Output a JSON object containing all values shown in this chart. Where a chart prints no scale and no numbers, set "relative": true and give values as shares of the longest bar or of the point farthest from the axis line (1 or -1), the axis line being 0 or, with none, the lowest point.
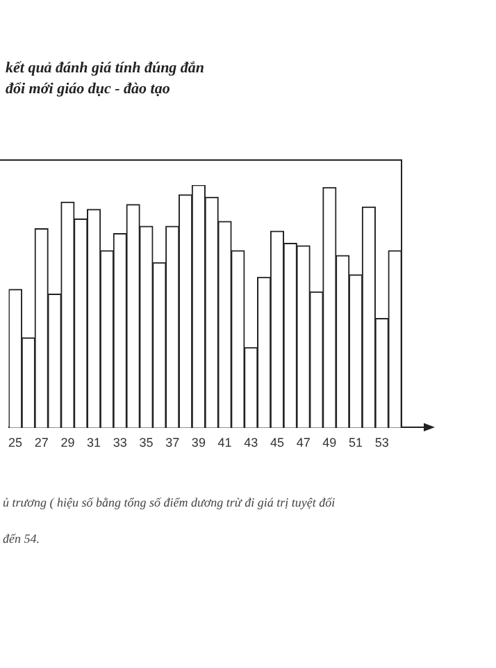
{
  "chart_data": {
    "type": "bar",
    "relative": true,
    "title": "kết quả đánh giá tính đúng đắn",
    "subtitle": "đổi mới giáo dục - đào tạo",
    "categories": [
      "25",
      null,
      "27",
      null,
      "29",
      null,
      "31",
      null,
      "33",
      null,
      "35",
      null,
      "37",
      null,
      "39",
      null,
      "41",
      null,
      "43",
      null,
      "45",
      null,
      "47",
      null,
      "49",
      null,
      "51",
      null,
      "53",
      null
    ],
    "values": [
      0.57,
      0.37,
      0.82,
      0.55,
      0.93,
      0.86,
      0.9,
      0.73,
      0.8,
      0.92,
      0.83,
      0.68,
      0.83,
      0.96,
      1,
      0.95,
      0.85,
      0.73,
      0.33,
      0.62,
      0.81,
      0.76,
      0.75,
      0.56,
      0.99,
      0.71,
      0.63,
      0.91,
      0.45,
      0.73
    ],
    "color": "#ffffff",
    "grid": false,
    "legend": false,
    "annotations": [
      "ủ trương ( hiệu số bằng tổng số điểm dương trừ đi giá trị tuyệt đối",
      "đến 54."
    ]
  }
}
